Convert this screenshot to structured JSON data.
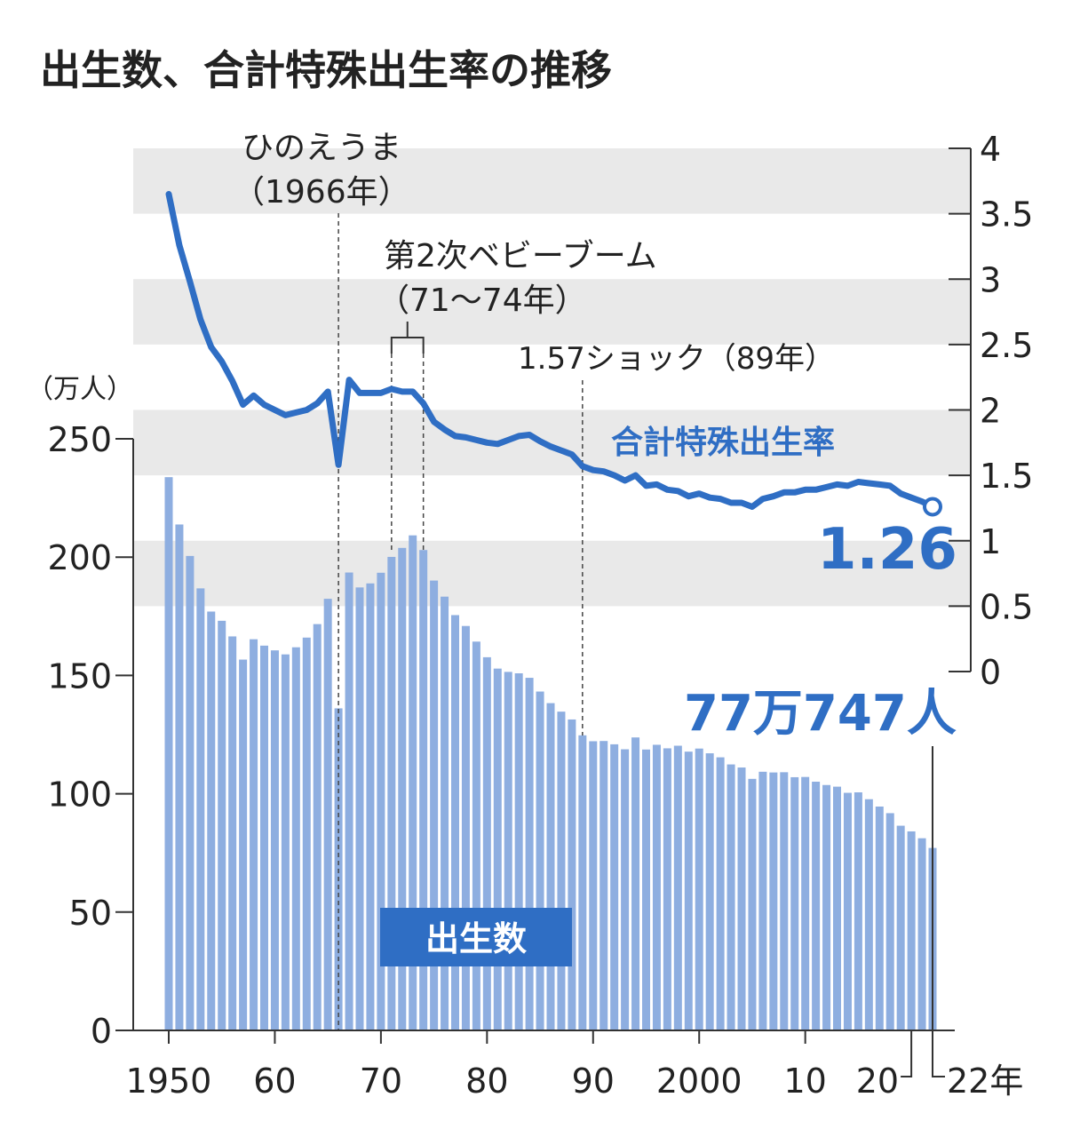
{
  "chart_data": {
    "type": "bar+line",
    "title": "出生数、合計特殊出生率の推移",
    "left_axis": {
      "unit_label": "（万人）",
      "ylim": [
        0,
        250
      ],
      "ticks": [
        "0",
        "50",
        "100",
        "150",
        "200",
        "250"
      ]
    },
    "right_axis": {
      "ylim": [
        0,
        4
      ],
      "ticks": [
        "0",
        "0.5",
        "1",
        "1.5",
        "2",
        "2.5",
        "3",
        "3.5",
        "4"
      ]
    },
    "x_ticks": [
      "1950",
      "60",
      "70",
      "80",
      "90",
      "2000",
      "10",
      "20",
      "22年"
    ],
    "x_tick_years": [
      1950,
      1960,
      1970,
      1980,
      1990,
      2000,
      2010,
      2020,
      2022
    ],
    "grid": "horizontal bands on right axis",
    "colors": {
      "bars": "#8eaee0",
      "line": "#2f6ec4",
      "accent_text": "#2f6ec4",
      "band": "#e9e9e9"
    },
    "years": [
      1950,
      1951,
      1952,
      1953,
      1954,
      1955,
      1956,
      1957,
      1958,
      1959,
      1960,
      1961,
      1962,
      1963,
      1964,
      1965,
      1966,
      1967,
      1968,
      1969,
      1970,
      1971,
      1972,
      1973,
      1974,
      1975,
      1976,
      1977,
      1978,
      1979,
      1980,
      1981,
      1982,
      1983,
      1984,
      1985,
      1986,
      1987,
      1988,
      1989,
      1990,
      1991,
      1992,
      1993,
      1994,
      1995,
      1996,
      1997,
      1998,
      1999,
      2000,
      2001,
      2002,
      2003,
      2004,
      2005,
      2006,
      2007,
      2008,
      2009,
      2010,
      2011,
      2012,
      2013,
      2014,
      2015,
      2016,
      2017,
      2018,
      2019,
      2020,
      2021,
      2022
    ],
    "series": [
      {
        "name": "出生数",
        "type": "bar",
        "axis": "left",
        "values": [
          233.8,
          213.8,
          200.5,
          186.8,
          177.0,
          173.1,
          166.5,
          156.7,
          165.3,
          162.6,
          160.6,
          158.9,
          161.9,
          166.0,
          171.7,
          182.4,
          136.1,
          193.5,
          187.2,
          188.9,
          193.4,
          200.1,
          203.9,
          209.2,
          203.0,
          190.1,
          183.3,
          175.5,
          170.9,
          164.3,
          157.7,
          152.9,
          151.5,
          150.9,
          149.0,
          143.2,
          138.3,
          134.7,
          131.4,
          124.7,
          122.2,
          122.3,
          120.9,
          118.8,
          123.8,
          118.7,
          120.7,
          119.2,
          120.3,
          117.8,
          119.1,
          117.1,
          115.4,
          112.4,
          111.1,
          106.3,
          109.3,
          109.0,
          109.1,
          107.0,
          107.1,
          105.1,
          103.7,
          103.0,
          100.4,
          100.6,
          97.7,
          94.6,
          91.8,
          86.5,
          84.1,
          81.2,
          77.1
        ]
      },
      {
        "name": "合計特殊出生率",
        "type": "line",
        "axis": "right",
        "values": [
          3.65,
          3.26,
          2.98,
          2.69,
          2.48,
          2.37,
          2.22,
          2.04,
          2.11,
          2.04,
          2.0,
          1.96,
          1.98,
          2.0,
          2.05,
          2.14,
          1.58,
          2.23,
          2.13,
          2.13,
          2.13,
          2.16,
          2.14,
          2.14,
          2.05,
          1.91,
          1.85,
          1.8,
          1.79,
          1.77,
          1.75,
          1.74,
          1.77,
          1.8,
          1.81,
          1.76,
          1.72,
          1.69,
          1.66,
          1.57,
          1.54,
          1.53,
          1.5,
          1.46,
          1.5,
          1.42,
          1.43,
          1.39,
          1.38,
          1.34,
          1.36,
          1.33,
          1.32,
          1.29,
          1.29,
          1.26,
          1.32,
          1.34,
          1.37,
          1.37,
          1.39,
          1.39,
          1.41,
          1.43,
          1.42,
          1.45,
          1.44,
          1.43,
          1.42,
          1.36,
          1.33,
          1.3,
          1.26
        ]
      }
    ],
    "annotations": {
      "hinoeuma_1": "ひのえうま",
      "hinoeuma_2": "（1966年）",
      "boom_1": "第2次ベビーブーム",
      "boom_2": "（71～74年）",
      "shock": "1.57ショック（89年）",
      "tfr_label": "合計特殊出生率",
      "tfr_last": "1.26",
      "births_last": "77万747人",
      "births_label": "出生数"
    }
  }
}
